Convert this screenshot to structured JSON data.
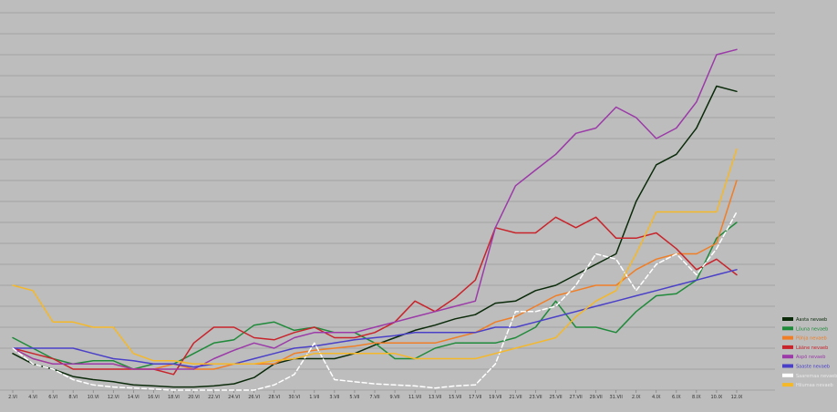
{
  "chart_data": {
    "type": "line",
    "title": "",
    "xlabel": "",
    "ylabel": "",
    "grid": true,
    "legend_position": "bottom-right",
    "x_ticks": [
      "2.VI",
      "4.VI",
      "6.VI",
      "8.VI",
      "10.VI",
      "12.VI",
      "14.VI",
      "16.VI",
      "18.VI",
      "20.VI",
      "22.VI",
      "24.VI",
      "26.VI",
      "28.VI",
      "30.VI",
      "1.VII",
      "3.VII",
      "5.VII",
      "7.VII",
      "9.VII",
      "11.VII",
      "13.VII",
      "15.VII",
      "17.VII",
      "19.VII",
      "21.VII",
      "23.VII",
      "25.VII",
      "27.VII",
      "29.VII",
      "31.VII",
      "2.IX",
      "4.IX",
      "6.IX",
      "8.IX",
      "10.IX",
      "12.IX"
    ],
    "series": [
      {
        "name": "Aasta nevaeb",
        "color": "#0a2a0a",
        "style": "solid",
        "values": [
          3.5,
          2.5,
          2,
          1.3,
          1,
          0.8,
          0.5,
          0.4,
          0.3,
          0.3,
          0.4,
          0.6,
          1.2,
          2.5,
          3,
          3,
          3,
          3.5,
          4.3,
          5,
          5.7,
          6.2,
          6.8,
          7.2,
          8.3,
          8.5,
          9.5,
          10,
          11,
          12,
          13,
          18,
          21.5,
          22.5,
          25,
          29,
          28.5
        ]
      },
      {
        "name": "Lõuna nevaeb",
        "color": "#1f8a3a",
        "style": "solid",
        "values": [
          5,
          4,
          3,
          2.5,
          2.8,
          2.8,
          2,
          2.5,
          2.5,
          3.5,
          4.5,
          4.8,
          6.2,
          6.5,
          5.7,
          6,
          5.5,
          5.5,
          4.5,
          3,
          3,
          4,
          4.5,
          4.5,
          4.5,
          5,
          6,
          8.5,
          6,
          6,
          5.5,
          7.5,
          9,
          9.2,
          10.5,
          14.5,
          16
        ]
      },
      {
        "name": "Põhja nevaeb",
        "color": "#f07e26",
        "style": "solid",
        "values": [
          4,
          3,
          2.5,
          2.5,
          2.5,
          2.5,
          2,
          2,
          2.5,
          2,
          2,
          2.5,
          2.5,
          2.5,
          3.5,
          3.8,
          4,
          4.2,
          4.5,
          4.5,
          4.5,
          4.5,
          5,
          5.5,
          6.5,
          7,
          8,
          9,
          9.5,
          10,
          10,
          11.5,
          12.5,
          13,
          13,
          14,
          20
        ]
      },
      {
        "name": "Lääne nevaeb",
        "color": "#c8242b",
        "style": "solid",
        "values": [
          4,
          3.5,
          3,
          2,
          2,
          2,
          2,
          2,
          1.5,
          4.5,
          6,
          6,
          5,
          4.8,
          5.5,
          6,
          5,
          5,
          5.5,
          6.5,
          8.5,
          7.5,
          8.8,
          10.5,
          15.5,
          15,
          15,
          16.5,
          15.5,
          16.5,
          14.5,
          14.5,
          15,
          13.5,
          11.5,
          12.5,
          11
        ]
      },
      {
        "name": "Aspõ nevaeb",
        "color": "#9b3aa8",
        "style": "solid",
        "values": [
          4,
          3,
          2.5,
          2.5,
          2.5,
          2.5,
          2,
          2,
          2,
          2,
          3,
          3.8,
          4.5,
          4,
          5,
          5.5,
          5.5,
          5.5,
          6,
          6.5,
          7,
          7.5,
          8,
          8.5,
          15.5,
          19.5,
          21,
          22.5,
          24.5,
          25,
          27,
          26,
          24,
          25,
          27.5,
          32,
          32.5
        ]
      },
      {
        "name": "Saaste nevaeb",
        "color": "#4a40c8",
        "style": "solid",
        "values": [
          4,
          4,
          4,
          4,
          3.5,
          3,
          2.8,
          2.5,
          2.5,
          2.2,
          2.5,
          2.5,
          3,
          3.5,
          4,
          4.2,
          4.5,
          4.8,
          5,
          5.2,
          5.5,
          5.5,
          5.5,
          5.5,
          6,
          6,
          6.5,
          7,
          7.5,
          8,
          8.5,
          9,
          9.5,
          10,
          10.5,
          11,
          11.5
        ]
      },
      {
        "name": "Saaremaa nevaeb",
        "color": "#ffffff",
        "style": "dashed",
        "values": [
          4,
          2.5,
          2,
          1,
          0.5,
          0.3,
          0.2,
          0.1,
          0,
          0,
          0,
          0,
          0,
          0.5,
          1.5,
          4.5,
          1,
          0.8,
          0.6,
          0.5,
          0.4,
          0.2,
          0.4,
          0.5,
          2.5,
          7.5,
          7.5,
          8,
          10,
          13,
          12.5,
          9.5,
          12,
          13,
          11,
          13.5,
          17
        ]
      },
      {
        "name": "Hiiumaa nevaeb",
        "color": "#f5b829",
        "style": "solid",
        "values": [
          10,
          9.5,
          6.5,
          6.5,
          6,
          6,
          3.5,
          2.8,
          2.8,
          2.5,
          2.5,
          2.5,
          2.5,
          2.8,
          3,
          3.5,
          3.5,
          3.5,
          3.5,
          3.5,
          3,
          3,
          3,
          3,
          3.5,
          4,
          4.5,
          5,
          7,
          8.5,
          9.5,
          13,
          17,
          17,
          17,
          17,
          23
        ]
      }
    ],
    "x_axis_ticks_shown": 37,
    "ylim": [
      0,
      36
    ],
    "y_gridlines": 18
  }
}
